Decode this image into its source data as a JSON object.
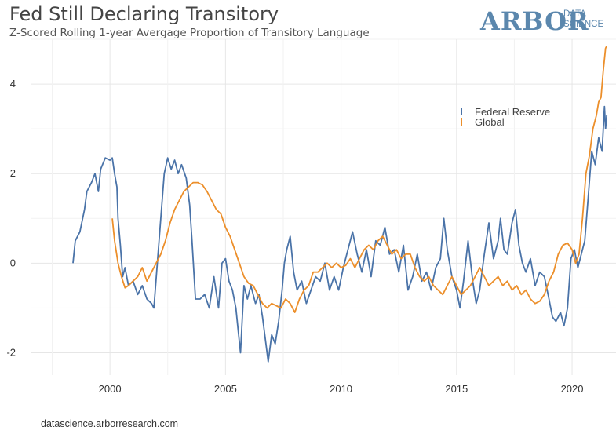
{
  "header": {
    "title": "Fed Still Declaring Transitory",
    "subtitle": "Z-Scored Rolling 1-year Avergage Proportion of Transitory Language"
  },
  "logo": {
    "word": "ARBOR",
    "line1": "DATA",
    "line2": "SCIENCE",
    "color": "#5b87ad"
  },
  "footer": {
    "source": "datascience.arborresearch.com"
  },
  "chart_data": {
    "type": "line",
    "title": "Fed Still Declaring Transitory",
    "subtitle": "Z-Scored Rolling 1-year Avergage Proportion of Transitory Language",
    "xlabel": "",
    "ylabel": "",
    "xlim": [
      1996.6,
      2021.9
    ],
    "ylim": [
      -2.5,
      5.0
    ],
    "x_ticks": [
      2000,
      2005,
      2010,
      2015,
      2020
    ],
    "x_tick_labels": [
      "2000",
      "2005",
      "2010",
      "2015",
      "2020"
    ],
    "y_ticks": [
      -2,
      0,
      2,
      4
    ],
    "y_tick_labels": [
      "-2",
      "0",
      "2",
      "4"
    ],
    "grid": true,
    "legend_position": "top-right",
    "series": [
      {
        "name": "Federal Reserve",
        "color": "#4a73a8",
        "points": [
          [
            1998.4,
            0.0
          ],
          [
            1998.5,
            0.5
          ],
          [
            1998.7,
            0.7
          ],
          [
            1998.9,
            1.2
          ],
          [
            1999.0,
            1.6
          ],
          [
            1999.2,
            1.8
          ],
          [
            1999.35,
            2.0
          ],
          [
            1999.5,
            1.6
          ],
          [
            1999.6,
            2.1
          ],
          [
            1999.8,
            2.35
          ],
          [
            2000.0,
            2.3
          ],
          [
            2000.1,
            2.35
          ],
          [
            2000.2,
            2.0
          ],
          [
            2000.3,
            1.7
          ],
          [
            2000.35,
            1.0
          ],
          [
            2000.45,
            0.4
          ],
          [
            2000.55,
            -0.3
          ],
          [
            2000.65,
            -0.1
          ],
          [
            2000.8,
            -0.5
          ],
          [
            2001.0,
            -0.4
          ],
          [
            2001.2,
            -0.7
          ],
          [
            2001.4,
            -0.5
          ],
          [
            2001.6,
            -0.8
          ],
          [
            2001.8,
            -0.9
          ],
          [
            2001.9,
            -1.0
          ],
          [
            2002.05,
            0.0
          ],
          [
            2002.2,
            1.0
          ],
          [
            2002.35,
            2.0
          ],
          [
            2002.5,
            2.35
          ],
          [
            2002.65,
            2.1
          ],
          [
            2002.8,
            2.3
          ],
          [
            2002.95,
            2.0
          ],
          [
            2003.1,
            2.2
          ],
          [
            2003.3,
            1.9
          ],
          [
            2003.45,
            1.3
          ],
          [
            2003.55,
            0.5
          ],
          [
            2003.7,
            -0.8
          ],
          [
            2003.9,
            -0.8
          ],
          [
            2004.1,
            -0.7
          ],
          [
            2004.3,
            -1.0
          ],
          [
            2004.5,
            -0.3
          ],
          [
            2004.7,
            -1.0
          ],
          [
            2004.85,
            0.0
          ],
          [
            2005.0,
            0.1
          ],
          [
            2005.15,
            -0.4
          ],
          [
            2005.3,
            -0.6
          ],
          [
            2005.45,
            -1.0
          ],
          [
            2005.55,
            -1.5
          ],
          [
            2005.65,
            -2.0
          ],
          [
            2005.8,
            -0.5
          ],
          [
            2005.95,
            -0.8
          ],
          [
            2006.1,
            -0.5
          ],
          [
            2006.3,
            -0.9
          ],
          [
            2006.45,
            -0.7
          ],
          [
            2006.6,
            -1.2
          ],
          [
            2006.75,
            -1.8
          ],
          [
            2006.85,
            -2.2
          ],
          [
            2007.0,
            -1.6
          ],
          [
            2007.15,
            -1.8
          ],
          [
            2007.3,
            -1.3
          ],
          [
            2007.45,
            -0.6
          ],
          [
            2007.55,
            0.0
          ],
          [
            2007.65,
            0.3
          ],
          [
            2007.8,
            0.6
          ],
          [
            2007.95,
            -0.2
          ],
          [
            2008.1,
            -0.6
          ],
          [
            2008.3,
            -0.4
          ],
          [
            2008.5,
            -0.9
          ],
          [
            2008.7,
            -0.6
          ],
          [
            2008.9,
            -0.3
          ],
          [
            2009.1,
            -0.4
          ],
          [
            2009.3,
            0.0
          ],
          [
            2009.5,
            -0.6
          ],
          [
            2009.7,
            -0.3
          ],
          [
            2009.9,
            -0.6
          ],
          [
            2010.1,
            -0.1
          ],
          [
            2010.3,
            0.3
          ],
          [
            2010.5,
            0.7
          ],
          [
            2010.7,
            0.2
          ],
          [
            2010.9,
            -0.2
          ],
          [
            2011.1,
            0.3
          ],
          [
            2011.3,
            -0.3
          ],
          [
            2011.5,
            0.5
          ],
          [
            2011.7,
            0.4
          ],
          [
            2011.9,
            0.8
          ],
          [
            2012.1,
            0.2
          ],
          [
            2012.3,
            0.3
          ],
          [
            2012.5,
            -0.2
          ],
          [
            2012.7,
            0.4
          ],
          [
            2012.9,
            -0.6
          ],
          [
            2013.1,
            -0.3
          ],
          [
            2013.3,
            0.2
          ],
          [
            2013.5,
            -0.4
          ],
          [
            2013.7,
            -0.2
          ],
          [
            2013.9,
            -0.6
          ],
          [
            2014.1,
            -0.1
          ],
          [
            2014.3,
            0.1
          ],
          [
            2014.45,
            1.0
          ],
          [
            2014.6,
            0.3
          ],
          [
            2014.8,
            -0.3
          ],
          [
            2015.0,
            -0.6
          ],
          [
            2015.15,
            -1.0
          ],
          [
            2015.3,
            -0.4
          ],
          [
            2015.5,
            0.5
          ],
          [
            2015.7,
            -0.4
          ],
          [
            2015.85,
            -0.9
          ],
          [
            2016.0,
            -0.6
          ],
          [
            2016.2,
            0.2
          ],
          [
            2016.4,
            0.9
          ],
          [
            2016.6,
            0.1
          ],
          [
            2016.8,
            0.5
          ],
          [
            2016.9,
            1.0
          ],
          [
            2017.05,
            0.3
          ],
          [
            2017.2,
            0.2
          ],
          [
            2017.4,
            0.9
          ],
          [
            2017.55,
            1.2
          ],
          [
            2017.7,
            0.4
          ],
          [
            2017.85,
            0.0
          ],
          [
            2018.0,
            -0.2
          ],
          [
            2018.2,
            0.1
          ],
          [
            2018.4,
            -0.5
          ],
          [
            2018.6,
            -0.2
          ],
          [
            2018.8,
            -0.3
          ],
          [
            2019.0,
            -0.8
          ],
          [
            2019.15,
            -1.2
          ],
          [
            2019.3,
            -1.3
          ],
          [
            2019.5,
            -1.1
          ],
          [
            2019.65,
            -1.4
          ],
          [
            2019.8,
            -1.0
          ],
          [
            2019.95,
            0.1
          ],
          [
            2020.1,
            0.3
          ],
          [
            2020.25,
            -0.1
          ],
          [
            2020.4,
            0.2
          ],
          [
            2020.55,
            0.5
          ],
          [
            2020.7,
            1.5
          ],
          [
            2020.85,
            2.5
          ],
          [
            2021.0,
            2.2
          ],
          [
            2021.15,
            2.8
          ],
          [
            2021.3,
            2.5
          ],
          [
            2021.4,
            3.5
          ],
          [
            2021.45,
            3.0
          ],
          [
            2021.5,
            3.3
          ]
        ]
      },
      {
        "name": "Global",
        "color": "#ec8f2b",
        "points": [
          [
            2000.1,
            1.0
          ],
          [
            2000.2,
            0.5
          ],
          [
            2000.35,
            0.0
          ],
          [
            2000.5,
            -0.3
          ],
          [
            2000.65,
            -0.55
          ],
          [
            2000.8,
            -0.5
          ],
          [
            2001.0,
            -0.4
          ],
          [
            2001.2,
            -0.3
          ],
          [
            2001.4,
            -0.1
          ],
          [
            2001.6,
            -0.4
          ],
          [
            2001.8,
            -0.2
          ],
          [
            2002.0,
            0.0
          ],
          [
            2002.2,
            0.2
          ],
          [
            2002.4,
            0.5
          ],
          [
            2002.6,
            0.9
          ],
          [
            2002.8,
            1.2
          ],
          [
            2003.0,
            1.4
          ],
          [
            2003.2,
            1.6
          ],
          [
            2003.4,
            1.7
          ],
          [
            2003.6,
            1.8
          ],
          [
            2003.8,
            1.8
          ],
          [
            2004.0,
            1.75
          ],
          [
            2004.2,
            1.6
          ],
          [
            2004.4,
            1.4
          ],
          [
            2004.6,
            1.2
          ],
          [
            2004.8,
            1.1
          ],
          [
            2005.0,
            0.8
          ],
          [
            2005.2,
            0.6
          ],
          [
            2005.4,
            0.3
          ],
          [
            2005.6,
            0.0
          ],
          [
            2005.8,
            -0.3
          ],
          [
            2006.0,
            -0.45
          ],
          [
            2006.2,
            -0.5
          ],
          [
            2006.4,
            -0.7
          ],
          [
            2006.6,
            -0.9
          ],
          [
            2006.8,
            -1.0
          ],
          [
            2007.0,
            -0.9
          ],
          [
            2007.2,
            -0.95
          ],
          [
            2007.4,
            -1.0
          ],
          [
            2007.6,
            -0.8
          ],
          [
            2007.8,
            -0.9
          ],
          [
            2008.0,
            -1.1
          ],
          [
            2008.2,
            -0.8
          ],
          [
            2008.4,
            -0.6
          ],
          [
            2008.6,
            -0.5
          ],
          [
            2008.8,
            -0.2
          ],
          [
            2009.0,
            -0.2
          ],
          [
            2009.2,
            -0.1
          ],
          [
            2009.4,
            0.0
          ],
          [
            2009.6,
            -0.1
          ],
          [
            2009.8,
            0.0
          ],
          [
            2010.0,
            -0.1
          ],
          [
            2010.2,
            -0.05
          ],
          [
            2010.4,
            0.1
          ],
          [
            2010.6,
            -0.1
          ],
          [
            2010.8,
            0.1
          ],
          [
            2011.0,
            0.3
          ],
          [
            2011.2,
            0.4
          ],
          [
            2011.4,
            0.3
          ],
          [
            2011.6,
            0.5
          ],
          [
            2011.8,
            0.6
          ],
          [
            2012.0,
            0.4
          ],
          [
            2012.2,
            0.2
          ],
          [
            2012.4,
            0.3
          ],
          [
            2012.6,
            0.1
          ],
          [
            2012.8,
            0.2
          ],
          [
            2013.0,
            0.2
          ],
          [
            2013.2,
            -0.1
          ],
          [
            2013.4,
            -0.3
          ],
          [
            2013.6,
            -0.4
          ],
          [
            2013.8,
            -0.3
          ],
          [
            2014.0,
            -0.5
          ],
          [
            2014.2,
            -0.6
          ],
          [
            2014.4,
            -0.7
          ],
          [
            2014.6,
            -0.5
          ],
          [
            2014.8,
            -0.3
          ],
          [
            2015.0,
            -0.5
          ],
          [
            2015.2,
            -0.7
          ],
          [
            2015.4,
            -0.6
          ],
          [
            2015.6,
            -0.5
          ],
          [
            2015.8,
            -0.3
          ],
          [
            2016.0,
            -0.1
          ],
          [
            2016.2,
            -0.3
          ],
          [
            2016.4,
            -0.5
          ],
          [
            2016.6,
            -0.4
          ],
          [
            2016.8,
            -0.3
          ],
          [
            2017.0,
            -0.5
          ],
          [
            2017.2,
            -0.4
          ],
          [
            2017.4,
            -0.6
          ],
          [
            2017.6,
            -0.5
          ],
          [
            2017.8,
            -0.7
          ],
          [
            2018.0,
            -0.6
          ],
          [
            2018.2,
            -0.8
          ],
          [
            2018.4,
            -0.9
          ],
          [
            2018.6,
            -0.85
          ],
          [
            2018.8,
            -0.7
          ],
          [
            2019.0,
            -0.4
          ],
          [
            2019.2,
            -0.2
          ],
          [
            2019.4,
            0.2
          ],
          [
            2019.6,
            0.4
          ],
          [
            2019.8,
            0.45
          ],
          [
            2020.0,
            0.3
          ],
          [
            2020.15,
            0.0
          ],
          [
            2020.3,
            0.2
          ],
          [
            2020.45,
            1.0
          ],
          [
            2020.6,
            2.0
          ],
          [
            2020.75,
            2.4
          ],
          [
            2020.9,
            3.0
          ],
          [
            2021.05,
            3.3
          ],
          [
            2021.15,
            3.6
          ],
          [
            2021.25,
            3.7
          ],
          [
            2021.35,
            4.3
          ],
          [
            2021.45,
            4.8
          ],
          [
            2021.5,
            4.85
          ]
        ]
      }
    ]
  }
}
